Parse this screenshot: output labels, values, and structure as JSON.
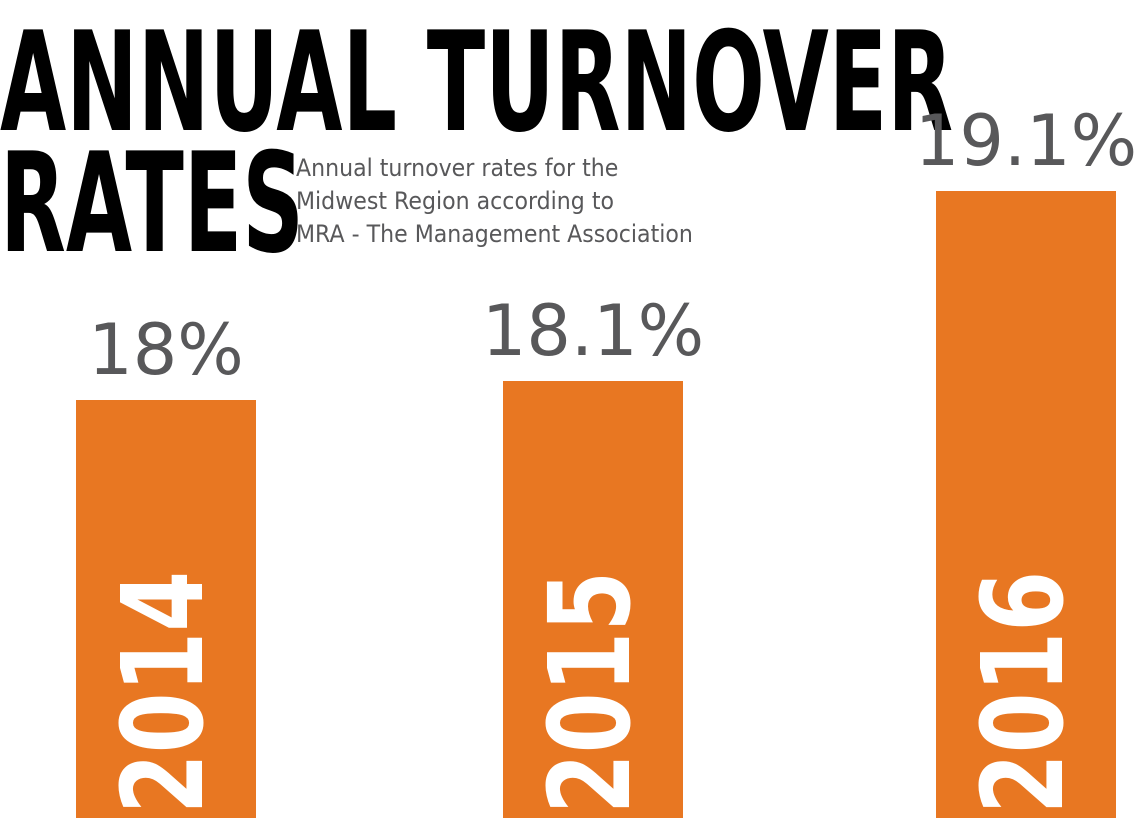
{
  "header": {
    "title_line_1": "ANNUAL TURNOVER",
    "title_line_2": "RATES",
    "subtitle_lines": [
      "Annual turnover rates for the",
      "Midwest Region according to",
      "MRA - The Management Association"
    ]
  },
  "colors": {
    "bar": "#e87722",
    "value_label": "#58585a",
    "category_label": "#ffffff",
    "title": "#000000"
  },
  "chart_data": {
    "type": "bar",
    "title": "ANNUAL TURNOVER RATES",
    "subtitle": "Annual turnover rates for the Midwest Region according to MRA - The Management Association",
    "categories": [
      "2014",
      "2015",
      "2016"
    ],
    "values": [
      18,
      18.1,
      19.1
    ],
    "value_labels": [
      "18%",
      "18.1%",
      "19.1%"
    ],
    "xlabel": "",
    "ylabel": "",
    "ylim": [
      15.8,
      19.2
    ],
    "grid": false,
    "legend": "none",
    "category_label_orientation": "vertical-inside-bar"
  }
}
